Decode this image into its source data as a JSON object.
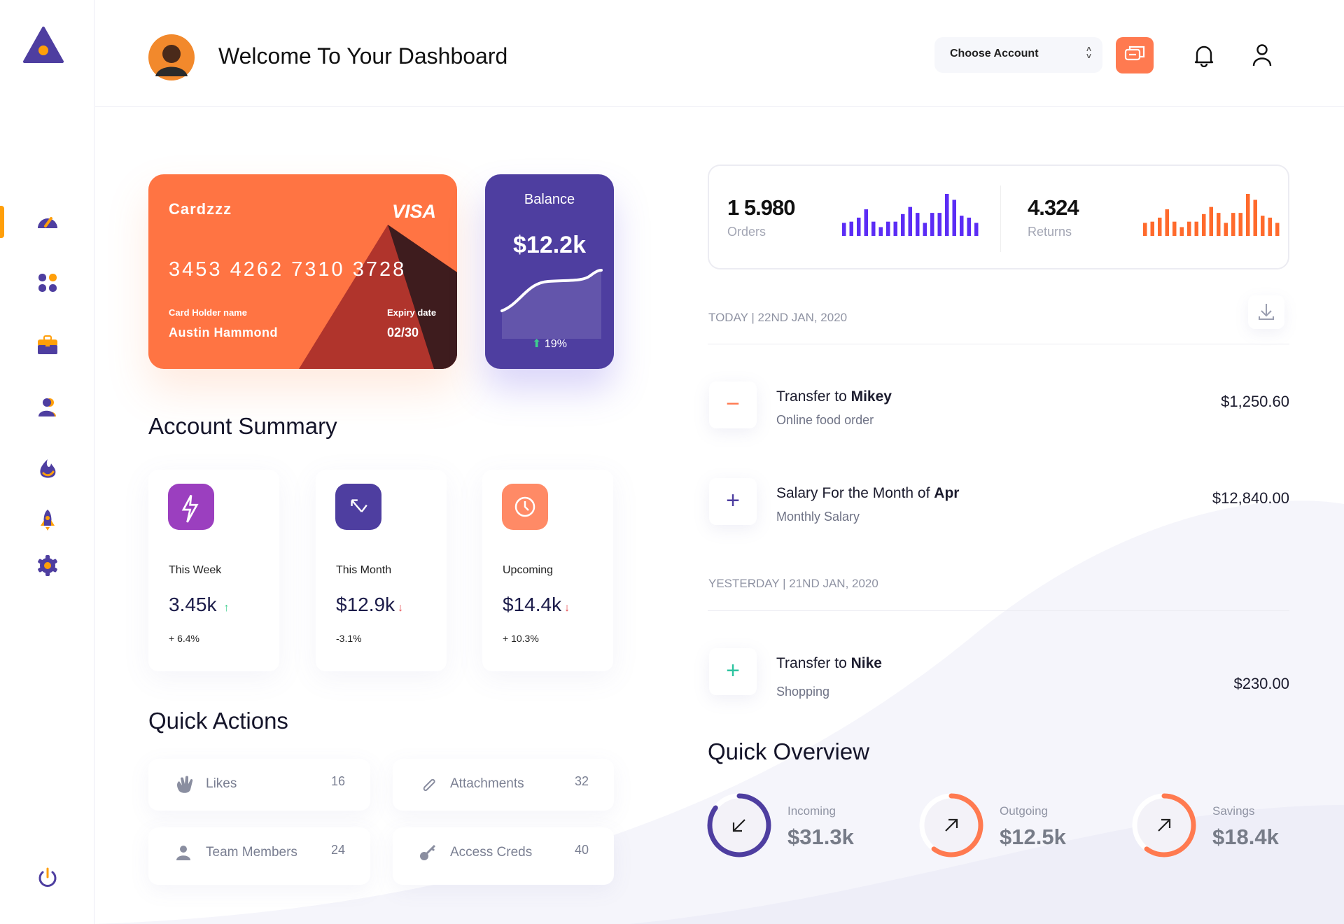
{
  "header": {
    "title": "Welcome To Your Dashboard",
    "account_select": "Choose Account"
  },
  "sidebar": {
    "items": [
      {
        "icon": "speedometer-icon",
        "active": true
      },
      {
        "icon": "grid-icon"
      },
      {
        "icon": "briefcase-icon"
      },
      {
        "icon": "users-icon"
      },
      {
        "icon": "fire-icon"
      },
      {
        "icon": "rocket-icon"
      },
      {
        "icon": "gear-icon"
      }
    ],
    "logout_icon": "power-icon"
  },
  "card": {
    "name": "Cardzzz",
    "brand": "VISA",
    "number": "3453 4262 7310 3728",
    "holder_label": "Card Holder name",
    "holder": "Austin Hammond",
    "expiry_label": "Expiry date",
    "expiry": "02/30"
  },
  "balance": {
    "label": "Balance",
    "value": "$12.2k",
    "change": "19%"
  },
  "account_summary": {
    "title": "Account Summary",
    "items": [
      {
        "label": "This Week",
        "value": "3.45k",
        "trend": "up",
        "change": "+ 6.4%",
        "color": "#9b3fbf"
      },
      {
        "label": "This Month",
        "value": "$12.9k",
        "trend": "down",
        "change": "-3.1%",
        "color": "#4e3ea0"
      },
      {
        "label": "Upcoming",
        "value": "$14.4k",
        "trend": "down",
        "change": "+ 10.3%",
        "color": "#ff8a66"
      }
    ]
  },
  "quick_actions": {
    "title": "Quick Actions",
    "items": [
      {
        "label": "Likes",
        "count": "16",
        "icon": "hand-icon"
      },
      {
        "label": "Attachments",
        "count": "32",
        "icon": "paperclip-icon"
      },
      {
        "label": "Team Members",
        "count": "24",
        "icon": "user-icon"
      },
      {
        "label": "Access Creds",
        "count": "40",
        "icon": "key-icon"
      }
    ]
  },
  "stats": {
    "orders": {
      "value": "1 5.980",
      "label": "Orders",
      "color": "#5b2cf5",
      "bars": [
        55,
        60,
        77,
        112,
        60,
        37,
        60,
        60,
        92,
        122,
        97,
        55,
        97,
        97,
        177,
        152,
        85,
        77,
        55
      ]
    },
    "returns": {
      "value": "4.324",
      "label": "Returns",
      "color": "#ff6a2c",
      "bars": [
        55,
        60,
        77,
        112,
        60,
        37,
        60,
        60,
        92,
        122,
        97,
        55,
        97,
        97,
        177,
        152,
        85,
        77,
        55
      ]
    }
  },
  "transactions": {
    "today_label": "TODAY | 22ND JAN, 2020",
    "yesterday_label": "YESTERDAY | 21ND JAN, 2020",
    "items": [
      {
        "prefix": "Transfer to ",
        "bold": "Mikey",
        "sub": "Online food order",
        "amount": "$1,250.60",
        "sign": "−",
        "color": "#ff7a50"
      },
      {
        "prefix": "Salary For the Month of ",
        "bold": "Apr",
        "sub": "Monthly Salary",
        "amount": "$12,840.00",
        "sign": "+",
        "color": "#4e3ea0"
      },
      {
        "prefix": "Transfer to ",
        "bold": "Nike",
        "sub": "Shopping",
        "amount": "$230.00",
        "sign": "+",
        "color": "#2ec4a0"
      }
    ]
  },
  "quick_overview": {
    "title": "Quick Overview",
    "items": [
      {
        "label": "Incoming",
        "value": "$31.3k",
        "color": "#4e3ea0",
        "progress": 0.85,
        "direction": "in"
      },
      {
        "label": "Outgoing",
        "value": "$12.5k",
        "color": "#ff7a50",
        "progress": 0.6,
        "direction": "out"
      },
      {
        "label": "Savings",
        "value": "$18.4k",
        "color": "#ff7a50",
        "progress": 0.6,
        "direction": "out"
      }
    ]
  }
}
